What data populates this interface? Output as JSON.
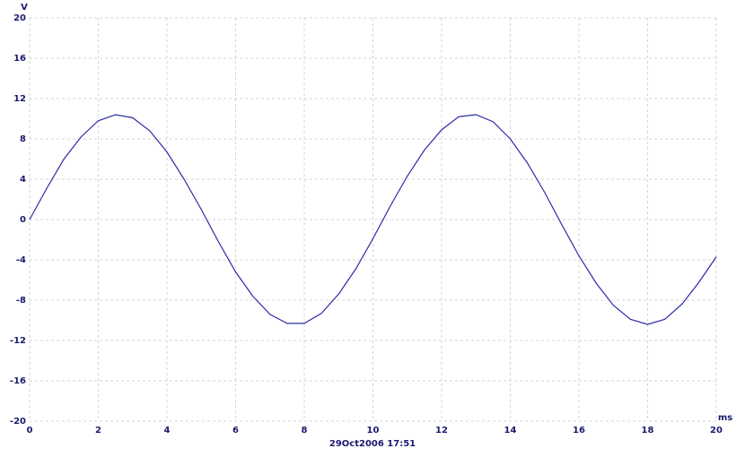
{
  "chart_data": {
    "type": "line",
    "y_label": "V",
    "x_label": "ms",
    "footer": "29Oct2006  17:51",
    "x": [
      0,
      0.5,
      1,
      1.5,
      2,
      2.5,
      3,
      3.5,
      4,
      4.5,
      5,
      5.5,
      6,
      6.5,
      7,
      7.5,
      8,
      8.5,
      9,
      9.5,
      10,
      10.5,
      11,
      11.5,
      12,
      12.5,
      13,
      13.5,
      14,
      14.5,
      15,
      15.5,
      16,
      16.5,
      17,
      17.5,
      18,
      18.5,
      19,
      19.5,
      20
    ],
    "series": [
      {
        "color": "#2b2ba8",
        "values": [
          0,
          3.1,
          6.0,
          8.2,
          9.8,
          10.4,
          10.1,
          8.8,
          6.7,
          4.0,
          1.0,
          -2.2,
          -5.2,
          -7.6,
          -9.4,
          -10.3,
          -10.3,
          -9.3,
          -7.4,
          -4.9,
          -1.9,
          1.3,
          4.3,
          6.9,
          8.9,
          10.2,
          10.4,
          9.7,
          8.0,
          5.6,
          2.7,
          -0.5,
          -3.6,
          -6.3,
          -8.5,
          -9.9,
          -10.4,
          -9.9,
          -8.4,
          -6.2,
          -3.7
        ]
      }
    ],
    "xlim": [
      0,
      20
    ],
    "xticks": [
      0,
      2,
      4,
      6,
      8,
      10,
      12,
      14,
      16,
      18,
      20
    ],
    "ylim": [
      -20,
      20
    ],
    "yticks": [
      -20,
      -16,
      -12,
      -8,
      -4,
      0,
      4,
      8,
      12,
      16,
      20
    ],
    "grid": true
  }
}
